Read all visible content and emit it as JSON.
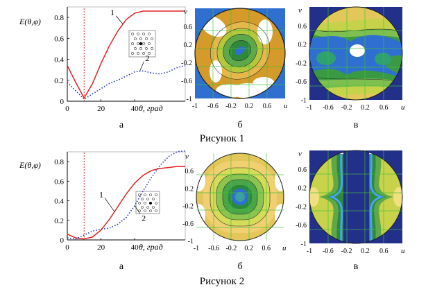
{
  "figures": [
    {
      "caption": "Рисунок 1",
      "panel_labels": [
        "а",
        "б",
        "в"
      ],
      "line_ylabel": "E(θ,φ)",
      "line_xlabel": "θ, град",
      "line_series_labels": [
        "1",
        "2"
      ],
      "polar_xlabel": "u",
      "polar_ylabel": "v"
    },
    {
      "caption": "Рисунок 2",
      "panel_labels": [
        "а",
        "б",
        "в"
      ],
      "line_ylabel": "E(θ,φ)",
      "line_xlabel": "θ, град",
      "line_series_labels": [
        "1",
        "2"
      ],
      "polar_xlabel": "u",
      "polar_ylabel": "v"
    }
  ],
  "chart_data": [
    {
      "type": "line",
      "ylabel": "E(θ,φ)",
      "xlabel": "θ, град",
      "xlim": [
        0,
        70
      ],
      "ylim": [
        0,
        0.9
      ],
      "xticks": [
        0,
        20,
        40
      ],
      "yticks": [
        0,
        0.2,
        0.4,
        0.6,
        0.8
      ],
      "vline_x": 10,
      "series": [
        {
          "name": "1",
          "style": "solid",
          "color": "#e02020",
          "x": [
            0,
            5,
            10,
            15,
            20,
            25,
            30,
            35,
            40,
            45,
            50,
            55,
            60,
            65,
            70
          ],
          "y": [
            0.34,
            0.18,
            0.03,
            0.17,
            0.36,
            0.53,
            0.67,
            0.78,
            0.84,
            0.86,
            0.86,
            0.86,
            0.86,
            0.86,
            0.86
          ]
        },
        {
          "name": "2",
          "style": "dotted",
          "color": "#2030c0",
          "x": [
            0,
            5,
            10,
            15,
            20,
            25,
            30,
            35,
            40,
            45,
            50,
            55,
            60,
            65,
            70
          ],
          "y": [
            0.18,
            0.1,
            0.02,
            0.07,
            0.12,
            0.17,
            0.2,
            0.24,
            0.28,
            0.29,
            0.27,
            0.26,
            0.28,
            0.32,
            0.34
          ]
        }
      ]
    },
    {
      "type": "heatmap",
      "xlabel": "u",
      "ylabel": "v",
      "xticks": [
        -1,
        -0.6,
        -0.2,
        0.2,
        0.6,
        1
      ],
      "yticks": [
        0.6,
        0.2,
        -0.2,
        -0.6,
        -1
      ]
    },
    {
      "type": "heatmap",
      "xlabel": "u",
      "ylabel": "v",
      "xticks": [
        -1,
        -0.6,
        -0.2,
        0.2,
        0.6,
        1
      ],
      "yticks": [
        0.6,
        0.2,
        -0.2,
        -0.6,
        -1
      ]
    },
    {
      "type": "line",
      "ylabel": "E(θ,φ)",
      "xlabel": "θ, град",
      "xlim": [
        0,
        70
      ],
      "ylim": [
        0,
        0.9
      ],
      "xticks": [
        0,
        20,
        40
      ],
      "yticks": [
        0,
        0.2,
        0.4,
        0.6,
        0.8
      ],
      "vline_x": 10,
      "series": [
        {
          "name": "1",
          "style": "solid",
          "color": "#e02020",
          "x": [
            0,
            5,
            10,
            15,
            20,
            25,
            30,
            35,
            40,
            45,
            50,
            55,
            60,
            65,
            70
          ],
          "y": [
            0.06,
            0.02,
            0.01,
            0.03,
            0.1,
            0.21,
            0.34,
            0.47,
            0.58,
            0.66,
            0.71,
            0.73,
            0.74,
            0.75,
            0.75
          ]
        },
        {
          "name": "2",
          "style": "dotted",
          "color": "#2030c0",
          "x": [
            0,
            5,
            10,
            15,
            20,
            25,
            30,
            35,
            40,
            45,
            50,
            55,
            60,
            65,
            70
          ],
          "y": [
            0.02,
            0.01,
            0.05,
            0.09,
            0.11,
            0.12,
            0.16,
            0.23,
            0.35,
            0.5,
            0.64,
            0.76,
            0.85,
            0.9,
            0.91
          ]
        }
      ]
    },
    {
      "type": "heatmap",
      "xlabel": "u",
      "ylabel": "v",
      "xticks": [
        -1,
        -0.6,
        -0.2,
        0.2,
        0.6,
        1
      ],
      "yticks": [
        0.6,
        0.2,
        -0.2,
        -0.6,
        -1
      ]
    },
    {
      "type": "heatmap",
      "xlabel": "u",
      "ylabel": "v",
      "xticks": [
        -1,
        -0.6,
        -0.2,
        0.2,
        0.6,
        1
      ],
      "yticks": [
        0.6,
        0.2,
        -0.2,
        -0.6,
        -1
      ]
    }
  ]
}
